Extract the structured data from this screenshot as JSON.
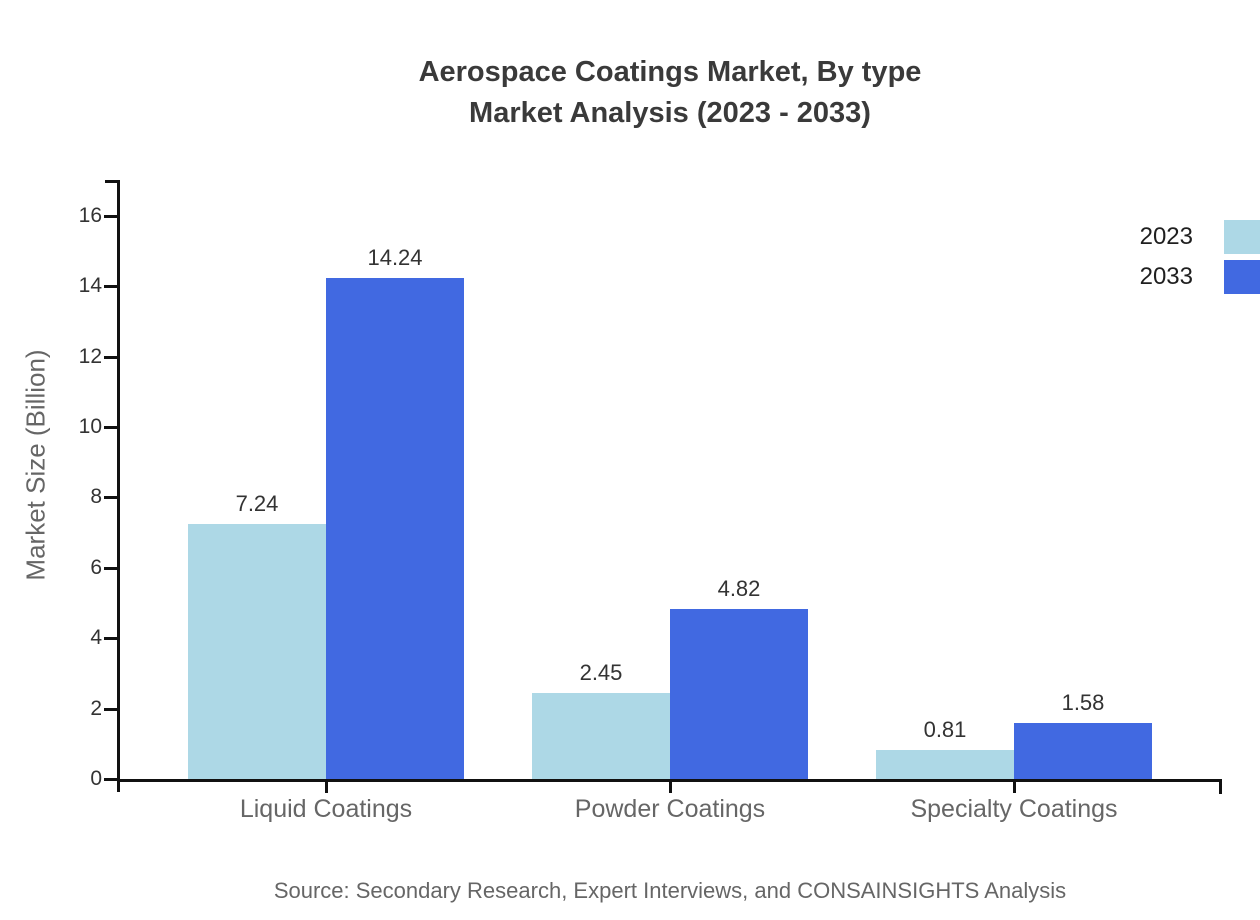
{
  "title": {
    "line1": "Aerospace Coatings Market, By type",
    "line2": "Market Analysis (2023 - 2033)"
  },
  "source": "Source: Secondary Research, Expert Interviews, and CONSAINSIGHTS Analysis",
  "legend": [
    {
      "label": "2023",
      "color": "#ADD8E6"
    },
    {
      "label": "2033",
      "color": "#4169E1"
    }
  ],
  "colors": {
    "series_2023": "#ADD8E6",
    "series_2033": "#4169E1",
    "axis": "#111111",
    "title_text": "#3a3a3a",
    "muted_text": "#666666",
    "tick_text": "#333333"
  },
  "chart_data": {
    "type": "bar",
    "title": "Aerospace Coatings Market, By type — Market Analysis (2023 - 2033)",
    "categories": [
      "Liquid Coatings",
      "Powder Coatings",
      "Specialty Coatings"
    ],
    "series": [
      {
        "name": "2023",
        "color": "#ADD8E6",
        "values": [
          7.24,
          2.45,
          0.81
        ]
      },
      {
        "name": "2033",
        "color": "#4169E1",
        "values": [
          14.24,
          4.82,
          1.58
        ]
      }
    ],
    "xlabel": "",
    "ylabel": "Market Size (Billion)",
    "yticks": [
      0,
      2,
      4,
      6,
      8,
      10,
      12,
      14,
      16
    ],
    "ylim": [
      0,
      17
    ],
    "grid": false,
    "legend_position": "top-right",
    "value_labels": true
  }
}
